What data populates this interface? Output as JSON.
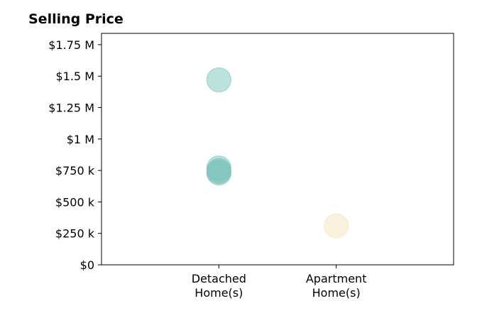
{
  "chart_data": {
    "type": "scatter",
    "title": "Selling Price",
    "xlabel": "",
    "ylabel": "",
    "categories": [
      [
        "Detached",
        "Home(s)"
      ],
      [
        "Apartment",
        "Home(s)"
      ]
    ],
    "x_range": [
      -1,
      2
    ],
    "ylim": [
      0,
      1840000
    ],
    "y_ticks": [
      0,
      250000,
      500000,
      750000,
      1000000,
      1250000,
      1500000,
      1750000
    ],
    "y_tick_labels": [
      "$0",
      "$250 k",
      "$500 k",
      "$750 k",
      "$1 M",
      "$1.25 M",
      "$1.5 M",
      "$1.75 M"
    ],
    "grid": false,
    "series": [
      {
        "category": "Detached Home(s)",
        "color": "#7cc4bb",
        "points": [
          {
            "x": 0,
            "y": 1470000
          },
          {
            "x": 0,
            "y": 770000
          },
          {
            "x": 0,
            "y": 750000
          },
          {
            "x": 0,
            "y": 740000
          },
          {
            "x": 0,
            "y": 730000
          }
        ]
      },
      {
        "category": "Apartment Home(s)",
        "color": "#f6e4b9",
        "points": [
          {
            "x": 1,
            "y": 310000
          }
        ]
      }
    ]
  }
}
